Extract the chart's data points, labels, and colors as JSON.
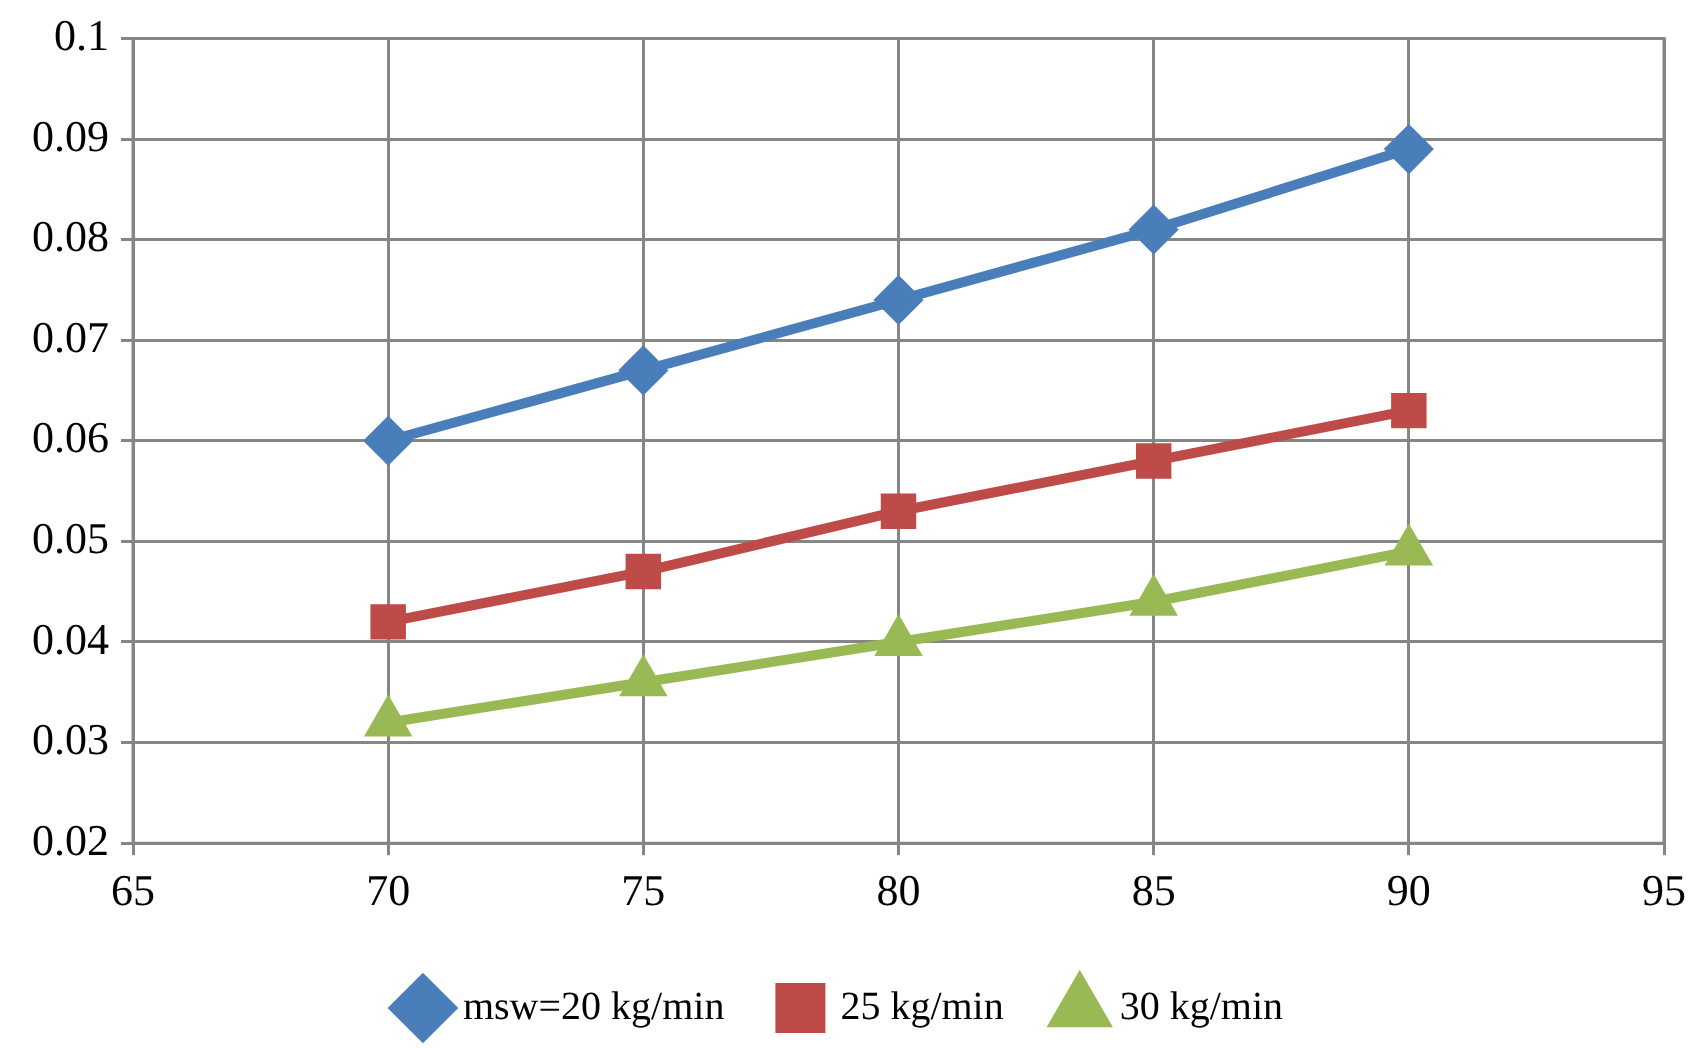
{
  "chart_data": {
    "type": "line",
    "x": [
      70,
      75,
      80,
      85,
      90
    ],
    "series": [
      {
        "name": "msw=20 kg/min",
        "color": "#4a7ebb",
        "marker": "diamond",
        "values": [
          0.06,
          0.067,
          0.074,
          0.081,
          0.089
        ]
      },
      {
        "name": "25 kg/min",
        "color": "#be4b48",
        "marker": "square",
        "values": [
          0.042,
          0.047,
          0.053,
          0.058,
          0.063
        ]
      },
      {
        "name": "30 kg/min",
        "color": "#98b954",
        "marker": "triangle",
        "values": [
          0.032,
          0.036,
          0.04,
          0.044,
          0.049
        ]
      }
    ],
    "xlim": [
      65,
      95
    ],
    "xticks": [
      65,
      70,
      75,
      80,
      85,
      90,
      95
    ],
    "ylim": [
      0.02,
      0.1
    ],
    "yticks": [
      0.02,
      0.03,
      0.04,
      0.05,
      0.06,
      0.07,
      0.08,
      0.09,
      0.1
    ],
    "grid": true,
    "legend": "bottom",
    "line_style": "solid"
  }
}
